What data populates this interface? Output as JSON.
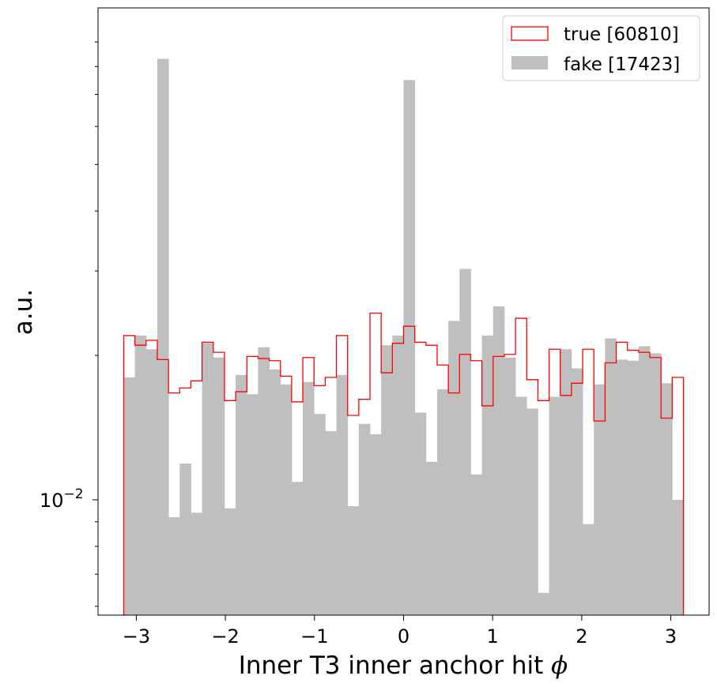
{
  "chart_data": {
    "type": "histogram",
    "title": "",
    "xlabel": "Inner T3 inner anchor hit ",
    "xlabel_symbol": "ϕ",
    "ylabel": "a.u.",
    "yscale": "log",
    "xlim": [
      -3.43,
      3.43
    ],
    "ylim": [
      0.00575,
      0.106
    ],
    "x_ticks": [
      -3,
      -2,
      -1,
      0,
      1,
      2,
      3
    ],
    "x_tick_labels": [
      "−3",
      "−2",
      "−1",
      "0",
      "1",
      "2",
      "3"
    ],
    "y_major_tick": {
      "value": 0.01,
      "base": "10",
      "exponent": "−2"
    },
    "y_minor_ticks": [
      0.006,
      0.007,
      0.008,
      0.009,
      0.02,
      0.03,
      0.04,
      0.05,
      0.06,
      0.07,
      0.08,
      0.09
    ],
    "bins": {
      "start": -3.14159,
      "end": 3.14159,
      "count": 50
    },
    "legend": {
      "placement": "upper right"
    },
    "series": [
      {
        "name": "true [60810]",
        "style": "step",
        "color": "#ff0000",
        "values": [
          0.022,
          0.021,
          0.0215,
          0.0196,
          0.0167,
          0.0171,
          0.0177,
          0.0213,
          0.0203,
          0.0161,
          0.0168,
          0.0199,
          0.0197,
          0.0195,
          0.0181,
          0.016,
          0.0198,
          0.0173,
          0.018,
          0.022,
          0.015,
          0.0162,
          0.0245,
          0.0184,
          0.0212,
          0.023,
          0.0213,
          0.021,
          0.0191,
          0.0167,
          0.0201,
          0.0195,
          0.0157,
          0.0199,
          0.0201,
          0.0239,
          0.0178,
          0.0161,
          0.0206,
          0.0165,
          0.0175,
          0.0206,
          0.0146,
          0.0193,
          0.0213,
          0.0205,
          0.0203,
          0.0198,
          0.0148,
          0.018
        ]
      },
      {
        "name": "fake [17423]",
        "style": "filled",
        "color": "#bfbfbf",
        "values": [
          0.018,
          0.022,
          0.0206,
          0.083,
          0.0092,
          0.0119,
          0.0094,
          0.0212,
          0.0198,
          0.0096,
          0.0182,
          0.0166,
          0.0208,
          0.0187,
          0.0174,
          0.0109,
          0.0176,
          0.0151,
          0.0139,
          0.0182,
          0.0097,
          0.0144,
          0.0137,
          0.021,
          0.022,
          0.075,
          0.0152,
          0.012,
          0.017,
          0.0236,
          0.0303,
          0.0113,
          0.022,
          0.0253,
          0.0198,
          0.0164,
          0.0155,
          0.0064,
          0.0164,
          0.0206,
          0.0188,
          0.0089,
          0.0174,
          0.0217,
          0.0196,
          0.0195,
          0.0209,
          0.0202,
          0.0175,
          0.01
        ]
      }
    ]
  }
}
